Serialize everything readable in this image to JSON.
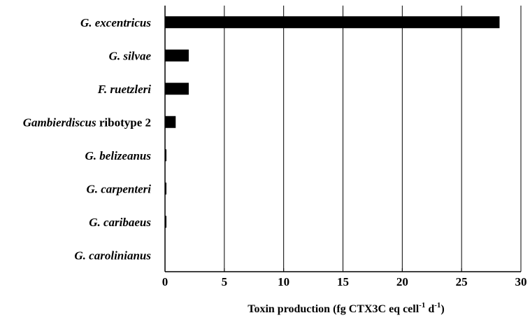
{
  "chart_data": {
    "type": "bar",
    "orientation": "horizontal",
    "categories": [
      {
        "label": "G. excentricus",
        "italic": "G. excentricus",
        "rest": ""
      },
      {
        "label": "G. silvae",
        "italic": "G. silvae",
        "rest": ""
      },
      {
        "label": "F. ruetzleri",
        "italic": "F. ruetzleri",
        "rest": ""
      },
      {
        "label": "Gambierdiscus ribotype 2",
        "italic": "Gambierdiscus",
        "rest": " ribotype 2"
      },
      {
        "label": "G. belizeanus",
        "italic": "G. belizeanus",
        "rest": ""
      },
      {
        "label": "G. carpenteri",
        "italic": "G. carpenteri",
        "rest": ""
      },
      {
        "label": "G. caribaeus",
        "italic": "G. caribaeus",
        "rest": ""
      },
      {
        "label": "G. carolinianus",
        "italic": "G. carolinianus",
        "rest": ""
      }
    ],
    "values": [
      28.2,
      2.0,
      2.0,
      0.9,
      0.1,
      0.1,
      0.1,
      0.0
    ],
    "xlim": [
      0,
      30
    ],
    "xticks": [
      "0",
      "5",
      "10",
      "15",
      "20",
      "25",
      "30"
    ],
    "xlabel": {
      "main": "Toxin production  (fg CTX3C eq cell",
      "sup1": "-1",
      "mid": " d",
      "sup2": "-1",
      "end": ")"
    },
    "grid": "vertical",
    "bar_color": "#000000"
  }
}
